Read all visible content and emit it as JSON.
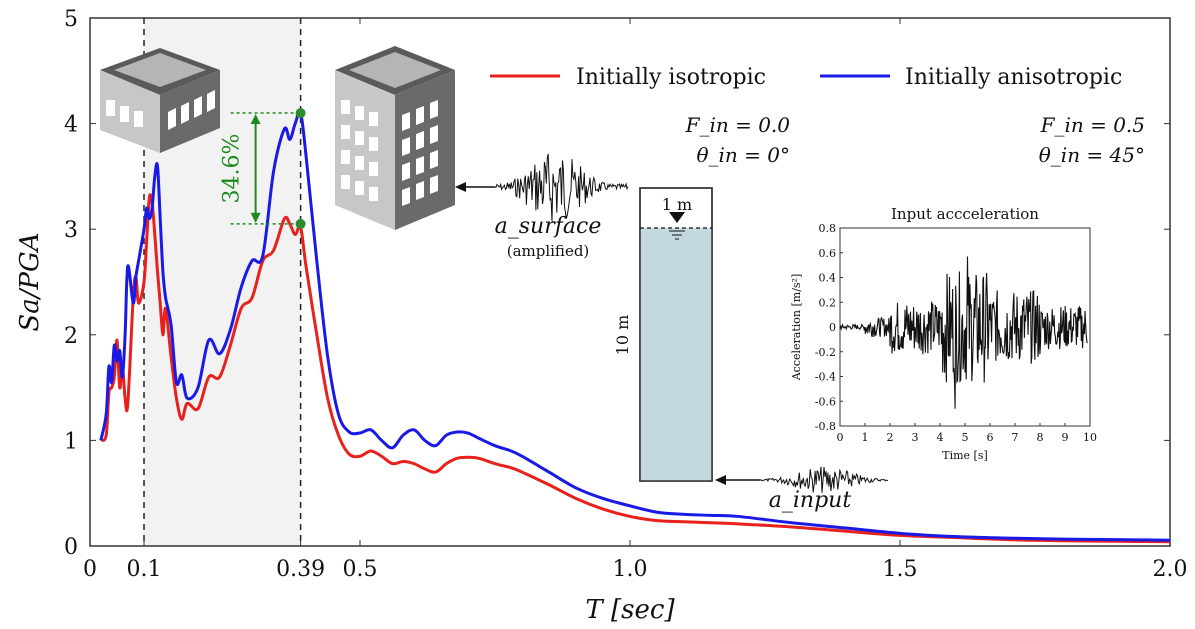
{
  "chart_data": {
    "type": "line",
    "xlabel": "T [sec]",
    "ylabel": "Sa/PGA",
    "xlim": [
      0,
      2.0
    ],
    "ylim": [
      0,
      5
    ],
    "x_ticks": [
      {
        "value": 0,
        "label": "0"
      },
      {
        "value": 0.1,
        "label": "0.1"
      },
      {
        "value": 0.39,
        "label": "0.39"
      },
      {
        "value": 0.5,
        "label": "0.5"
      },
      {
        "value": 1.0,
        "label": "1.0"
      },
      {
        "value": 1.5,
        "label": "1.5"
      },
      {
        "value": 2.0,
        "label": "2.0"
      }
    ],
    "y_ticks": [
      0,
      1,
      2,
      3,
      4,
      5
    ],
    "shaded_band": [
      0.1,
      0.39
    ],
    "vertical_lines": [
      0.1,
      0.39
    ],
    "legend_position": "top-right",
    "series": [
      {
        "name": "Initially isotropic",
        "color": "#e8211d",
        "params": {
          "f_label": "F_in = 0.0",
          "theta_label": "θ_in = 0°"
        },
        "x": [
          0.02,
          0.03,
          0.035,
          0.04,
          0.045,
          0.05,
          0.055,
          0.06,
          0.065,
          0.07,
          0.08,
          0.085,
          0.09,
          0.1,
          0.105,
          0.11,
          0.115,
          0.12,
          0.125,
          0.13,
          0.135,
          0.14,
          0.15,
          0.16,
          0.17,
          0.18,
          0.2,
          0.22,
          0.24,
          0.26,
          0.28,
          0.3,
          0.32,
          0.34,
          0.36,
          0.37,
          0.38,
          0.39,
          0.4,
          0.42,
          0.44,
          0.46,
          0.48,
          0.5,
          0.52,
          0.54,
          0.56,
          0.58,
          0.6,
          0.62,
          0.64,
          0.66,
          0.68,
          0.7,
          0.72,
          0.75,
          0.78,
          0.8,
          0.85,
          0.9,
          0.95,
          1.0,
          1.05,
          1.1,
          1.15,
          1.2,
          1.3,
          1.4,
          1.5,
          1.6,
          1.7,
          1.8,
          1.9,
          2.0
        ],
        "values": [
          1.0,
          1.05,
          1.45,
          1.5,
          1.6,
          1.95,
          1.5,
          1.7,
          1.4,
          1.35,
          2.35,
          2.55,
          2.3,
          2.5,
          2.9,
          3.3,
          3.25,
          2.95,
          2.6,
          2.3,
          2.0,
          2.25,
          1.8,
          1.4,
          1.2,
          1.35,
          1.3,
          1.6,
          1.6,
          1.9,
          2.25,
          2.35,
          2.7,
          2.8,
          3.1,
          3.05,
          2.95,
          3.02,
          2.65,
          2.0,
          1.4,
          1.05,
          0.87,
          0.85,
          0.9,
          0.85,
          0.78,
          0.8,
          0.78,
          0.73,
          0.7,
          0.78,
          0.83,
          0.84,
          0.83,
          0.78,
          0.74,
          0.7,
          0.58,
          0.45,
          0.35,
          0.28,
          0.24,
          0.23,
          0.22,
          0.21,
          0.18,
          0.14,
          0.1,
          0.08,
          0.06,
          0.05,
          0.045,
          0.04
        ]
      },
      {
        "name": "Initially anisotropic",
        "color": "#1a1ae6",
        "params": {
          "f_label": "F_in = 0.5",
          "theta_label": "θ_in = 45°"
        },
        "x": [
          0.02,
          0.03,
          0.035,
          0.04,
          0.045,
          0.05,
          0.055,
          0.06,
          0.065,
          0.07,
          0.08,
          0.085,
          0.09,
          0.1,
          0.105,
          0.11,
          0.115,
          0.12,
          0.125,
          0.13,
          0.135,
          0.14,
          0.15,
          0.16,
          0.17,
          0.18,
          0.2,
          0.22,
          0.24,
          0.26,
          0.28,
          0.3,
          0.32,
          0.34,
          0.36,
          0.37,
          0.38,
          0.39,
          0.4,
          0.42,
          0.44,
          0.46,
          0.48,
          0.5,
          0.52,
          0.54,
          0.56,
          0.58,
          0.6,
          0.62,
          0.64,
          0.66,
          0.68,
          0.7,
          0.72,
          0.75,
          0.78,
          0.8,
          0.85,
          0.9,
          0.95,
          1.0,
          1.05,
          1.1,
          1.15,
          1.2,
          1.3,
          1.4,
          1.5,
          1.6,
          1.7,
          1.8,
          1.9,
          2.0
        ],
        "values": [
          1.0,
          1.25,
          1.7,
          1.55,
          1.9,
          1.75,
          1.85,
          1.6,
          2.0,
          2.65,
          2.3,
          2.55,
          2.7,
          3.0,
          3.2,
          3.1,
          3.2,
          3.5,
          3.6,
          3.1,
          2.6,
          2.35,
          2.1,
          1.55,
          1.62,
          1.4,
          1.5,
          1.95,
          1.82,
          2.05,
          2.45,
          2.7,
          2.75,
          3.55,
          3.95,
          3.85,
          4.0,
          4.1,
          3.7,
          2.7,
          1.8,
          1.25,
          1.08,
          1.07,
          1.1,
          1.0,
          0.93,
          1.05,
          1.1,
          1.0,
          0.95,
          1.05,
          1.08,
          1.07,
          1.02,
          0.95,
          0.9,
          0.85,
          0.7,
          0.55,
          0.45,
          0.38,
          0.32,
          0.3,
          0.29,
          0.28,
          0.22,
          0.17,
          0.12,
          0.09,
          0.075,
          0.065,
          0.06,
          0.055
        ]
      }
    ],
    "annotation": {
      "label": "34.6%",
      "x": 0.39,
      "y_low": 3.05,
      "y_high": 4.1,
      "color": "#1f8a1f"
    },
    "soil_column": {
      "top_label": "1 m",
      "side_label": "10 m",
      "surface_label": "a_surface",
      "surface_note": "(amplified)",
      "input_label": "a_input"
    },
    "inset": {
      "title": "Input accceleration",
      "xlabel": "Time [s]",
      "ylabel": "Acceleration [m/s²]",
      "xlim": [
        0,
        10
      ],
      "ylim": [
        -0.8,
        0.8
      ],
      "x_ticks": [
        "0",
        "1",
        "2",
        "3",
        "4",
        "5",
        "6",
        "7",
        "8",
        "9",
        "10"
      ],
      "y_ticks": [
        "0.8",
        "0.6",
        "0.4",
        "0.2",
        "0",
        "-0.2",
        "-0.4",
        "-0.6",
        "-0.8"
      ]
    }
  }
}
